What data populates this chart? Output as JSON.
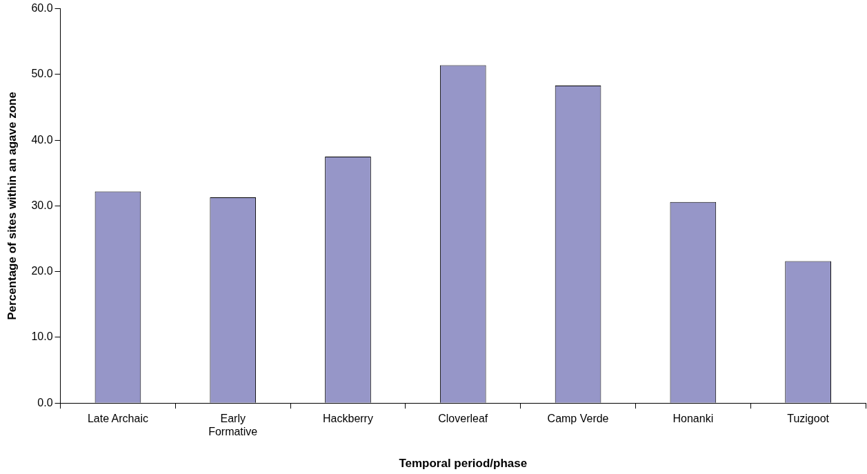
{
  "chart_data": {
    "type": "bar",
    "xlabel": "Temporal period/phase",
    "ylabel": "Percentage of sites within an agave zone",
    "categories": [
      "Late Archaic",
      "Early\nFormative",
      "Hackberry",
      "Cloverleaf",
      "Camp Verde",
      "Honanki",
      "Tuzigoot"
    ],
    "values": [
      32.2,
      31.3,
      37.5,
      51.4,
      48.3,
      30.6,
      21.6
    ],
    "color": "#9696c8",
    "ylim": [
      0,
      60
    ],
    "yticks": [
      {
        "value": 0,
        "label": "0.0"
      },
      {
        "value": 10,
        "label": "10.0"
      },
      {
        "value": 20,
        "label": "20.0"
      },
      {
        "value": 30,
        "label": "30.0"
      },
      {
        "value": 40,
        "label": "40.0"
      },
      {
        "value": 50,
        "label": "50.0"
      },
      {
        "value": 60,
        "label": "60.0"
      }
    ],
    "grid": false,
    "legend": false
  }
}
